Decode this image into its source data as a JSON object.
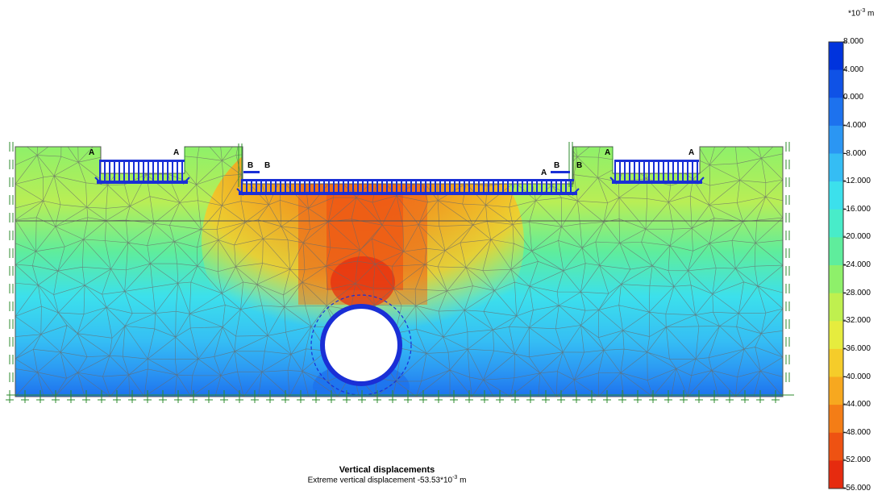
{
  "caption": {
    "title": "Vertical displacements",
    "subtitle_prefix": "Extreme vertical displacement -53.53*10",
    "subtitle_exp": "-3",
    "subtitle_unit": " m"
  },
  "legend": {
    "unit_prefix": "*10",
    "unit_exp": "-3",
    "unit_suffix": " m",
    "entries": [
      {
        "label": "8.000",
        "color": "#0033dd"
      },
      {
        "label": "4.000",
        "color": "#0f52e6"
      },
      {
        "label": "0.000",
        "color": "#1d72ee"
      },
      {
        "label": "-4.000",
        "color": "#2b96f3"
      },
      {
        "label": "-8.000",
        "color": "#35bdf4"
      },
      {
        "label": "-12.000",
        "color": "#3ce0ec"
      },
      {
        "label": "-16.000",
        "color": "#48ecc9"
      },
      {
        "label": "-20.000",
        "color": "#5fed9c"
      },
      {
        "label": "-24.000",
        "color": "#8ef06a"
      },
      {
        "label": "-28.000",
        "color": "#bff04f"
      },
      {
        "label": "-32.000",
        "color": "#e6ec3e"
      },
      {
        "label": "-36.000",
        "color": "#f5cc2a"
      },
      {
        "label": "-40.000",
        "color": "#f7a81f"
      },
      {
        "label": "-44.000",
        "color": "#f47d16"
      },
      {
        "label": "-48.000",
        "color": "#ee5212"
      },
      {
        "label": "-52.000",
        "color": "#e62b0f"
      },
      {
        "label": "-56.000",
        "color": "#de0d0d"
      }
    ]
  },
  "markers": {
    "a": "A",
    "b": "B"
  },
  "colors": {
    "load": "#1a2fd6",
    "mesh": "#6a6a6a",
    "boundary": "#2e8b2e",
    "tunnel": "#1a2fd6"
  }
}
